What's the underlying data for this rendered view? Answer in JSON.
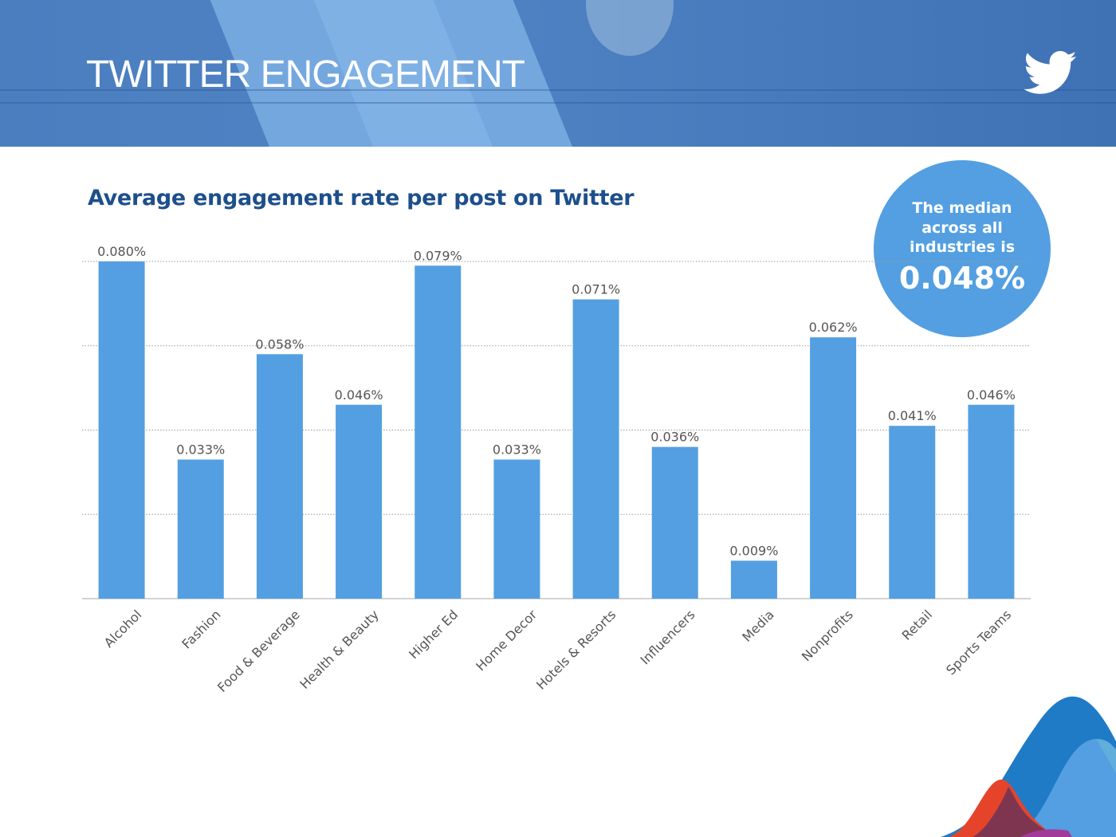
{
  "header": {
    "title": "TWITTER ENGAGEMENT",
    "logo_icon": "twitter-bird-icon"
  },
  "median_callout": {
    "text": "The median across all industries is",
    "value": "0.048%"
  },
  "chart_data": {
    "type": "bar",
    "title": "Average engagement rate per post on Twitter",
    "categories": [
      "Alcohol",
      "Fashion",
      "Food & Beverage",
      "Health & Beauty",
      "Higher Ed",
      "Home Decor",
      "Hotels & Resorts",
      "Influencers",
      "Media",
      "Nonprofits",
      "Retail",
      "Sports Teams"
    ],
    "values": [
      0.08,
      0.033,
      0.058,
      0.046,
      0.079,
      0.033,
      0.071,
      0.036,
      0.009,
      0.062,
      0.041,
      0.046
    ],
    "data_labels": [
      "0.080%",
      "0.033%",
      "0.058%",
      "0.046%",
      "0.079%",
      "0.033%",
      "0.071%",
      "0.036%",
      "0.009%",
      "0.062%",
      "0.041%",
      "0.046%"
    ],
    "unit": "%",
    "ylim": [
      0,
      0.08
    ],
    "grid": true,
    "grid_step": 0.02,
    "bar_color": "#539fe1",
    "xlabel": "",
    "ylabel": ""
  }
}
